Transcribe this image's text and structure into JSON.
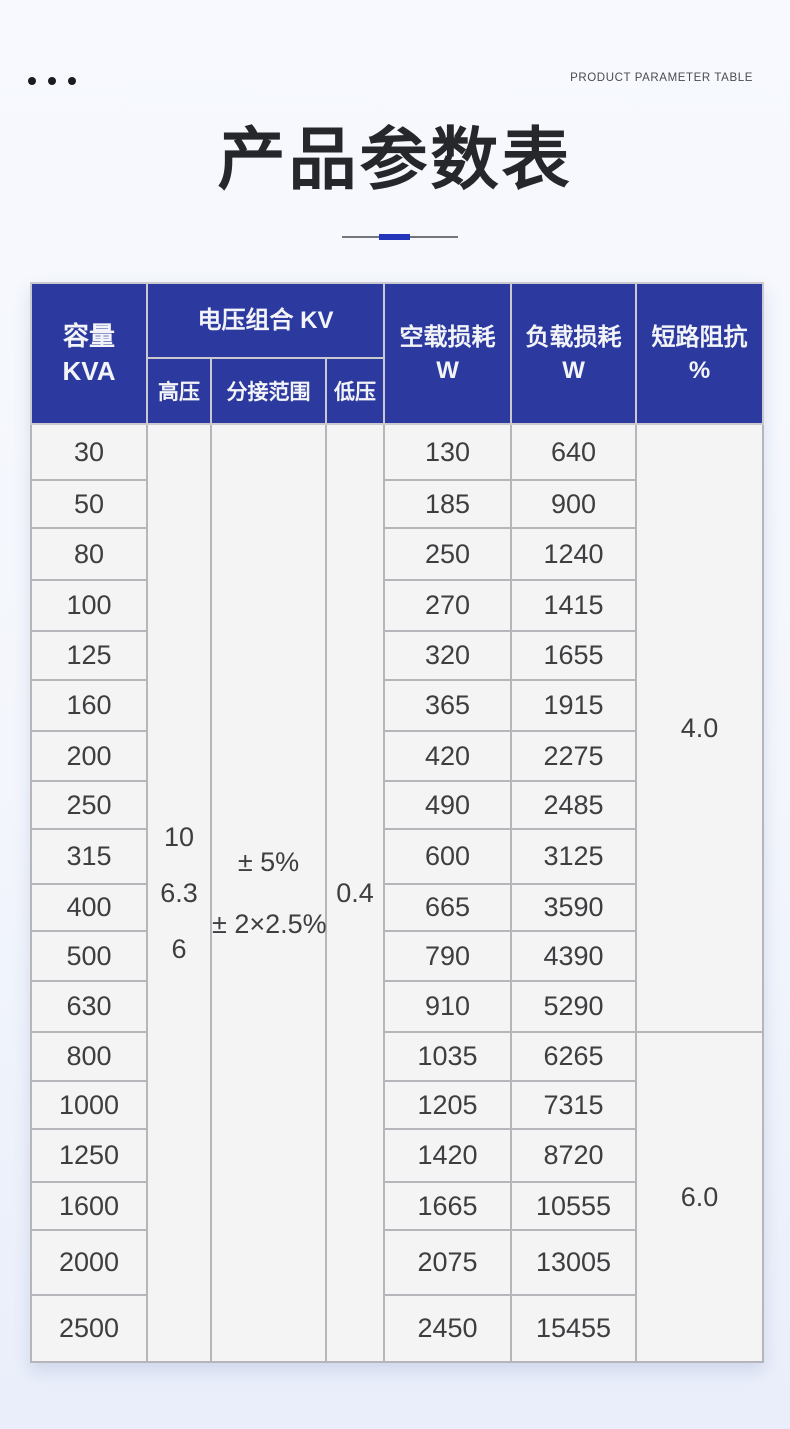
{
  "page": {
    "eyebrow": "PRODUCT PARAMETER TABLE",
    "title": "产品参数表"
  },
  "colors": {
    "header_blue": "#2c3aa0",
    "accent_blue": "#2336bb",
    "cell_background": "#f4f4f5",
    "page_background": "#f3f6fc"
  },
  "table": {
    "headers": {
      "capacity": "容量",
      "capacity_unit": "KVA",
      "voltage_group": "电压组合 KV",
      "high_voltage": "高压",
      "tap_range": "分接范围",
      "low_voltage": "低压",
      "no_load_loss": "空载损耗",
      "no_load_loss_unit": "W",
      "load_loss": "负载损耗",
      "load_loss_unit": "W",
      "impedance": "短路阻抗",
      "impedance_unit": "%"
    },
    "merged": {
      "high_voltage_values": [
        "10",
        "6.3",
        "6"
      ],
      "tap_range_values": [
        "± 5%",
        "± 2×2.5%"
      ],
      "low_voltage_value": "0.4",
      "impedance_groups": [
        {
          "value": "4.0",
          "rows": 12
        },
        {
          "value": "6.0",
          "rows": 6
        }
      ]
    },
    "rows": [
      {
        "capacity": "30",
        "no_load": "130",
        "load": "640"
      },
      {
        "capacity": "50",
        "no_load": "185",
        "load": "900"
      },
      {
        "capacity": "80",
        "no_load": "250",
        "load": "1240"
      },
      {
        "capacity": "100",
        "no_load": "270",
        "load": "1415"
      },
      {
        "capacity": "125",
        "no_load": "320",
        "load": "1655"
      },
      {
        "capacity": "160",
        "no_load": "365",
        "load": "1915"
      },
      {
        "capacity": "200",
        "no_load": "420",
        "load": "2275"
      },
      {
        "capacity": "250",
        "no_load": "490",
        "load": "2485"
      },
      {
        "capacity": "315",
        "no_load": "600",
        "load": "3125"
      },
      {
        "capacity": "400",
        "no_load": "665",
        "load": "3590"
      },
      {
        "capacity": "500",
        "no_load": "790",
        "load": "4390"
      },
      {
        "capacity": "630",
        "no_load": "910",
        "load": "5290"
      },
      {
        "capacity": "800",
        "no_load": "1035",
        "load": "6265"
      },
      {
        "capacity": "1000",
        "no_load": "1205",
        "load": "7315"
      },
      {
        "capacity": "1250",
        "no_load": "1420",
        "load": "8720"
      },
      {
        "capacity": "1600",
        "no_load": "1665",
        "load": "10555"
      },
      {
        "capacity": "2000",
        "no_load": "2075",
        "load": "13005"
      },
      {
        "capacity": "2500",
        "no_load": "2450",
        "load": "15455"
      }
    ]
  }
}
